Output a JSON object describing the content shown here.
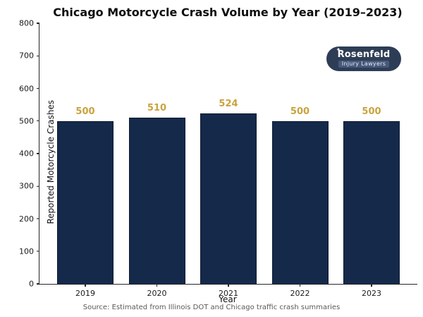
{
  "chart_data": {
    "type": "bar",
    "title": "Chicago Motorcycle Crash Volume by Year (2019–2023)",
    "categories": [
      "2019",
      "2020",
      "2021",
      "2022",
      "2023"
    ],
    "values": [
      500,
      510,
      524,
      500,
      500
    ],
    "value_labels": [
      "500",
      "510",
      "524",
      "500",
      "500"
    ],
    "xlabel": "Year",
    "ylabel": "Reported Motorcycle Crashes",
    "ylim": [
      0,
      800
    ],
    "yticks": [
      0,
      100,
      200,
      300,
      400,
      500,
      600,
      700,
      800
    ],
    "grid": false,
    "legend": null,
    "bar_color": "#15294a",
    "bar_edge_color": "#0d1b33",
    "value_label_color": "#c9a33e"
  },
  "branding": {
    "name": "Rosenfeld",
    "star": "✦",
    "tagline": "Injury Lawyers",
    "badge_bg": "#2e3d56",
    "tagline_bg": "#47597a"
  },
  "footer": {
    "source": "Source: Estimated from Illinois DOT and Chicago traffic crash summaries"
  }
}
